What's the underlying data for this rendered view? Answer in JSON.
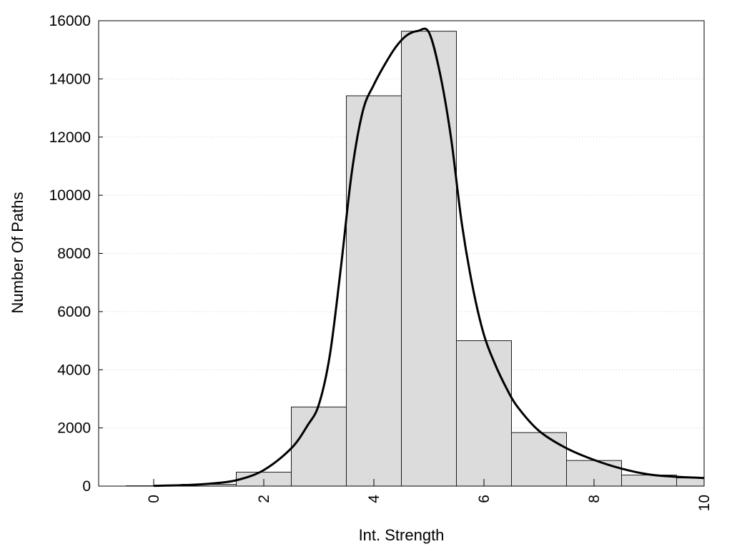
{
  "chart_data": {
    "type": "bar",
    "title": "",
    "xlabel": "Int. Strength",
    "ylabel": "Number Of Paths",
    "xlim": [
      -1,
      10
    ],
    "ylim": [
      0,
      16000
    ],
    "x_ticks": [
      0,
      2,
      4,
      6,
      8,
      10
    ],
    "y_ticks": [
      0,
      2000,
      4000,
      6000,
      8000,
      10000,
      12000,
      14000,
      16000
    ],
    "grid": {
      "y": true,
      "x": false,
      "style": "dotted"
    },
    "bar_width": 1,
    "bars": [
      {
        "x": 0,
        "value": 10
      },
      {
        "x": 1,
        "value": 60
      },
      {
        "x": 2,
        "value": 480
      },
      {
        "x": 3,
        "value": 2720
      },
      {
        "x": 4,
        "value": 13420
      },
      {
        "x": 5,
        "value": 15640
      },
      {
        "x": 6,
        "value": 5000
      },
      {
        "x": 7,
        "value": 1840
      },
      {
        "x": 8,
        "value": 880
      },
      {
        "x": 9,
        "value": 380
      },
      {
        "x": 10,
        "value": 280
      }
    ],
    "curve": {
      "x": [
        0,
        0.5,
        1,
        1.5,
        2,
        2.5,
        2.8,
        3,
        3.2,
        3.4,
        3.6,
        3.8,
        4,
        4.2,
        4.4,
        4.6,
        4.8,
        5,
        5.2,
        5.4,
        5.6,
        5.8,
        6,
        6.2,
        6.4,
        6.6,
        7,
        7.5,
        8,
        8.5,
        9,
        9.5,
        10
      ],
      "y": [
        10,
        30,
        80,
        200,
        550,
        1300,
        2100,
        2800,
        4500,
        7500,
        10800,
        12900,
        13800,
        14500,
        15100,
        15500,
        15650,
        15600,
        14200,
        12000,
        9000,
        6800,
        5200,
        4200,
        3400,
        2750,
        1900,
        1300,
        900,
        600,
        400,
        320,
        280
      ]
    },
    "colors": {
      "bar_fill": "#dcdcdc",
      "bar_stroke": "#1a1a1a",
      "curve": "#000000",
      "grid": "#c8c8c8"
    }
  }
}
